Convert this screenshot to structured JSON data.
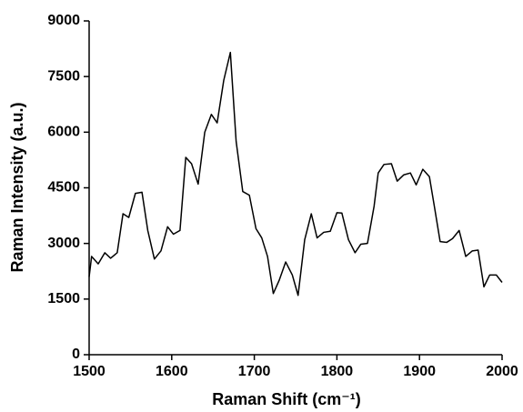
{
  "chart_data": {
    "type": "line",
    "xlabel": "Raman Shift (cm⁻¹)",
    "ylabel": "Raman Intensity (a.u.)",
    "x": [
      1500,
      1503,
      1511,
      1519,
      1526,
      1534,
      1541,
      1548,
      1556,
      1564,
      1571,
      1579,
      1587,
      1595,
      1602,
      1610,
      1617,
      1624,
      1632,
      1640,
      1648,
      1655,
      1663,
      1671,
      1678,
      1686,
      1694,
      1702,
      1709,
      1716,
      1723,
      1730,
      1738,
      1746,
      1753,
      1761,
      1769,
      1776,
      1784,
      1792,
      1800,
      1806,
      1814,
      1822,
      1829,
      1837,
      1845,
      1850,
      1857,
      1866,
      1873,
      1881,
      1889,
      1896,
      1904,
      1912,
      1918,
      1925,
      1933,
      1940,
      1948,
      1956,
      1964,
      1971,
      1978,
      1985,
      1993,
      2000
    ],
    "series": [
      {
        "name": "Raman",
        "color": "#000000",
        "values": [
          2100,
          2650,
          2450,
          2750,
          2600,
          2750,
          3800,
          3700,
          4350,
          4380,
          3350,
          2580,
          2800,
          3450,
          3250,
          3350,
          5320,
          5150,
          4600,
          6000,
          6480,
          6250,
          7400,
          8150,
          5750,
          4400,
          4300,
          3400,
          3150,
          2650,
          1650,
          2000,
          2500,
          2150,
          1600,
          3100,
          3800,
          3150,
          3300,
          3330,
          3830,
          3820,
          3100,
          2750,
          2980,
          3000,
          4000,
          4900,
          5130,
          5150,
          4680,
          4850,
          4900,
          4580,
          5000,
          4800,
          4000,
          3050,
          3030,
          3130,
          3350,
          2650,
          2800,
          2820,
          1830,
          2150,
          2150,
          1950
        ]
      }
    ],
    "xlim": [
      1500,
      2000
    ],
    "xticks": [
      1500,
      1600,
      1700,
      1800,
      1900,
      2000
    ],
    "ylim": [
      0,
      9000
    ],
    "yticks": [
      0,
      1500,
      3000,
      4500,
      6000,
      7500,
      9000
    ]
  }
}
